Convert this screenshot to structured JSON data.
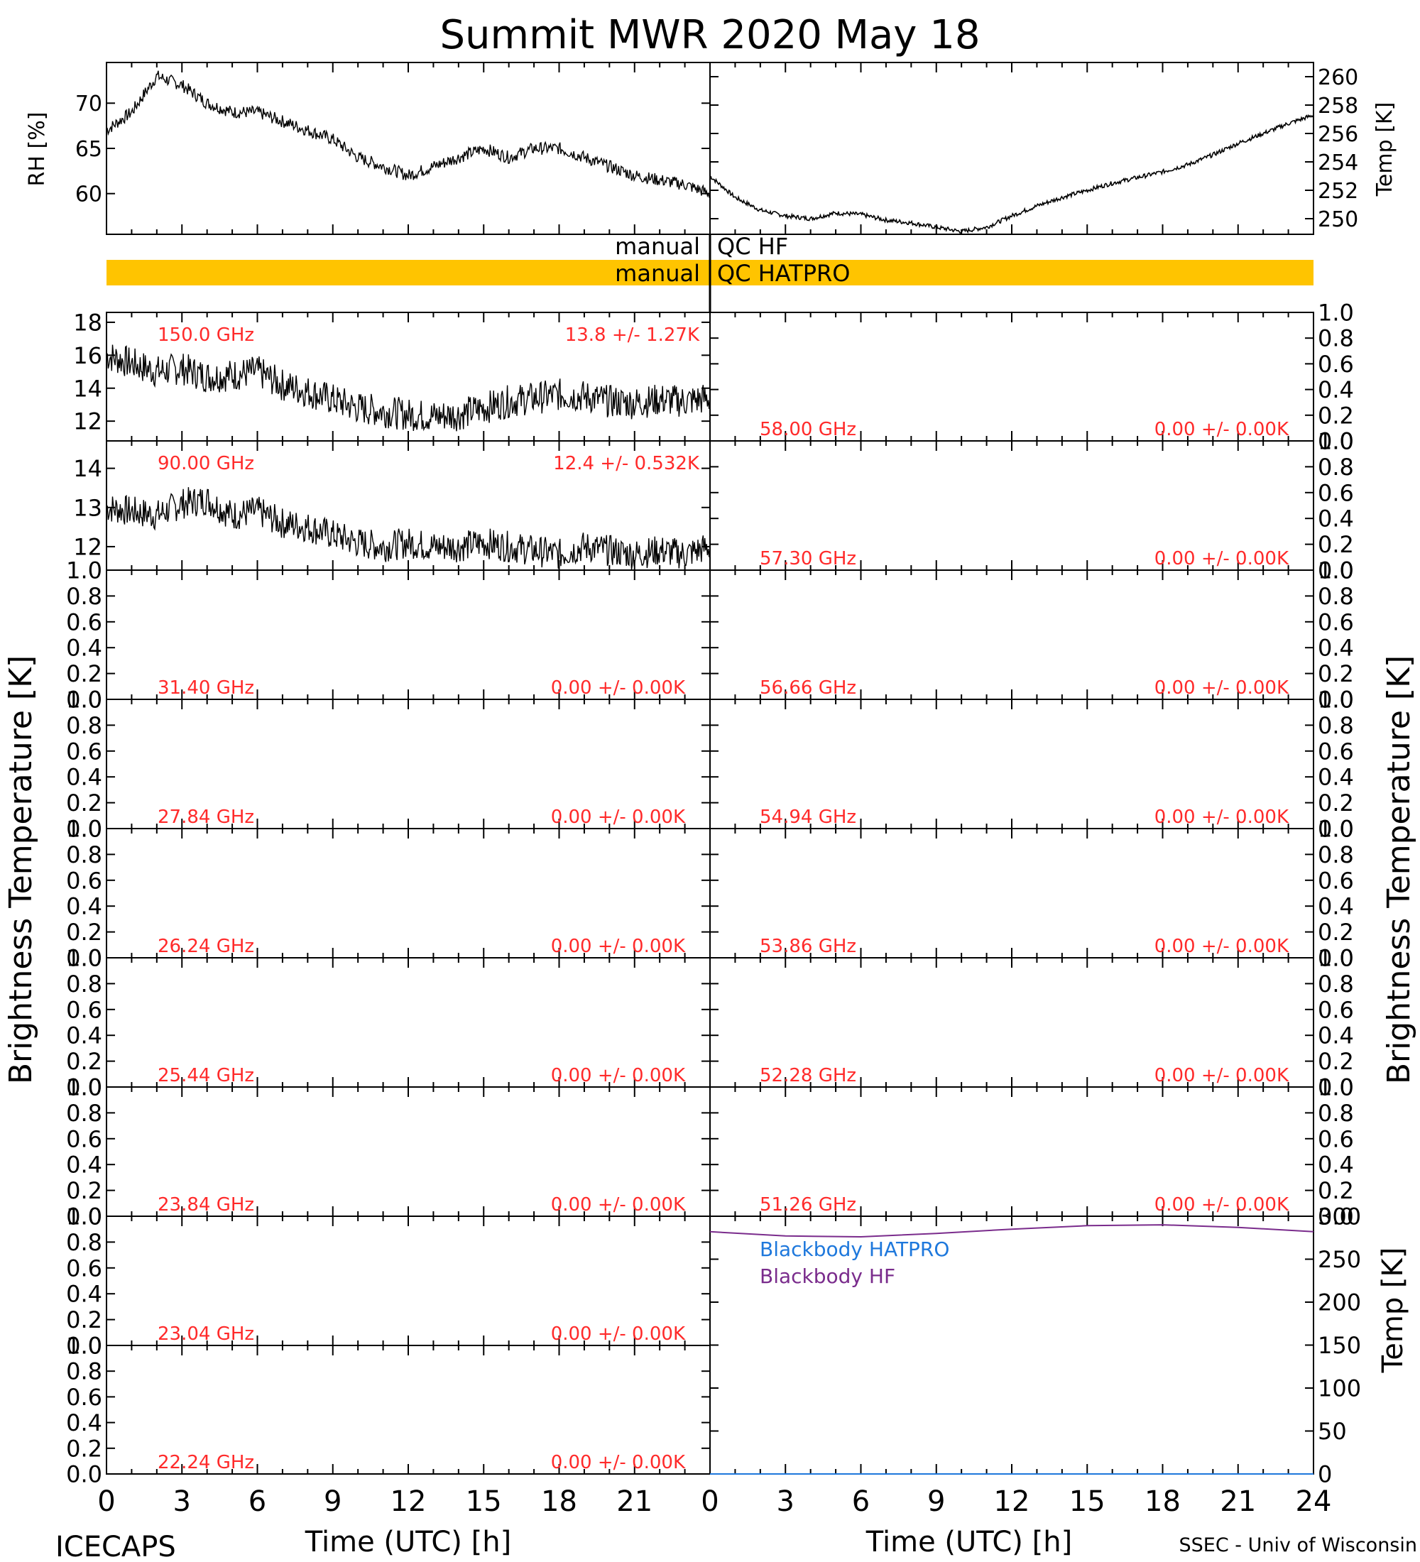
{
  "title": "Summit MWR 2020 May 18",
  "footer": {
    "left": "ICECAPS",
    "right": "SSEC - Univ of Wisconsin"
  },
  "colors": {
    "channel_label": "#ff2a2a",
    "qc_bar": "#ffc400",
    "bb_hatpro": "#1e78dc",
    "bb_hf": "#7a2c8c",
    "trace": "#000000"
  },
  "axes": {
    "time_label": "Time (UTC) [h]",
    "tb_label": "Brightness Temperature [K]",
    "rh_label": "RH [%]",
    "temp_label": "Temp [K]",
    "bb_temp_label": "Temp [K]",
    "time_ticks": [
      "0",
      "3",
      "6",
      "9",
      "12",
      "15",
      "18",
      "21",
      "24"
    ]
  },
  "qc": {
    "hf_label": "manual QC HF",
    "hatpro_label": "manual QC HATPRO"
  },
  "chart_data": [
    {
      "type": "line",
      "id": "rh",
      "ylabel": "RH [%]",
      "xlim": [
        0,
        12
      ],
      "ylim": [
        55.5,
        74.5
      ],
      "yticks": [
        "60",
        "65",
        "70"
      ],
      "x": [
        0,
        0.5,
        1,
        1.5,
        2,
        2.5,
        3,
        3.5,
        4,
        4.5,
        5,
        5.5,
        6,
        6.5,
        7,
        7.5,
        8,
        8.5,
        9,
        9.5,
        10,
        10.5,
        11,
        11.5,
        12
      ],
      "y": [
        67,
        69,
        73,
        72,
        70,
        69,
        69,
        68,
        67,
        66,
        64,
        63,
        62,
        63,
        64,
        65,
        64,
        65,
        65,
        64,
        63,
        62,
        61.5,
        61,
        60
      ]
    },
    {
      "type": "line",
      "id": "temp",
      "ylabel": "Temp [K]",
      "xlim": [
        0,
        12
      ],
      "ylim": [
        248.9,
        261
      ],
      "yticks": [
        "250",
        "252",
        "254",
        "256",
        "258",
        "260"
      ],
      "x": [
        0,
        0.5,
        1,
        1.5,
        2,
        2.5,
        3,
        3.5,
        4,
        4.5,
        5,
        5.5,
        6,
        6.5,
        7,
        7.5,
        8,
        8.5,
        9,
        9.5,
        10,
        10.5,
        11,
        11.5,
        12
      ],
      "y": [
        253,
        251.5,
        250.6,
        250.2,
        250,
        250.4,
        250.3,
        249.9,
        249.7,
        249.4,
        249.1,
        249.4,
        250.2,
        250.9,
        251.5,
        252,
        252.5,
        252.9,
        253.3,
        253.8,
        254.5,
        255.3,
        256,
        256.7,
        257.3
      ]
    },
    {
      "type": "line",
      "id": "tb_150",
      "channel": "150.0 GHz",
      "stats": "13.8 +/-  1.27K",
      "xlim": [
        0,
        12
      ],
      "ylim": [
        10.8,
        18.6
      ],
      "yticks": [
        "12",
        "14",
        "16",
        "18"
      ],
      "x": [
        0,
        0.5,
        1,
        1.5,
        2,
        2.5,
        3,
        3.5,
        4,
        4.5,
        5,
        5.5,
        6,
        6.5,
        7,
        7.5,
        8,
        8.5,
        9,
        9.5,
        10,
        10.5,
        11,
        11.5,
        12
      ],
      "y": [
        16,
        15.5,
        15,
        15.2,
        14.7,
        14.8,
        15,
        14.2,
        13.8,
        13.3,
        12.8,
        12.6,
        12.4,
        12.3,
        12.4,
        12.8,
        13.2,
        13.4,
        13.6,
        13.5,
        13.2,
        13.1,
        13.3,
        13.2,
        13.4
      ]
    },
    {
      "type": "line",
      "id": "tb_90",
      "channel": "90.00 GHz",
      "stats": "12.4 +/- 0.532K",
      "xlim": [
        0,
        12
      ],
      "ylim": [
        11.4,
        14.7
      ],
      "yticks": [
        "12",
        "13",
        "14"
      ],
      "x": [
        0,
        0.5,
        1,
        1.5,
        2,
        2.5,
        3,
        3.5,
        4,
        4.5,
        5,
        5.5,
        6,
        6.5,
        7,
        7.5,
        8,
        8.5,
        9,
        9.5,
        10,
        10.5,
        11,
        11.5,
        12
      ],
      "y": [
        13,
        12.9,
        12.8,
        13.1,
        13.2,
        12.8,
        12.9,
        12.6,
        12.5,
        12.3,
        12.1,
        12,
        12.1,
        12,
        12,
        12.1,
        12,
        11.9,
        11.8,
        12,
        11.9,
        11.8,
        11.9,
        11.8,
        12
      ]
    },
    {
      "type": "line",
      "id": "tb_empty",
      "ylim": [
        0,
        1
      ],
      "yticks": [
        "0.0",
        "0.2",
        "0.4",
        "0.6",
        "0.8",
        "1.0"
      ],
      "stats_blank": "0.00 +/- 0.00K",
      "left_channels": [
        "31.40 GHz",
        "27.84 GHz",
        "26.24 GHz",
        "25.44 GHz",
        "23.84 GHz",
        "23.04 GHz",
        "22.24 GHz"
      ],
      "right_channels": [
        "58.00 GHz",
        "57.30 GHz",
        "56.66 GHz",
        "54.94 GHz",
        "53.86 GHz",
        "52.28 GHz",
        "51.26 GHz"
      ]
    },
    {
      "type": "line",
      "id": "blackbody",
      "ylabel": "Temp [K]",
      "xlim": [
        0,
        24
      ],
      "ylim": [
        0,
        300
      ],
      "yticks": [
        "0",
        "50",
        "100",
        "150",
        "200",
        "250",
        "300"
      ],
      "series": [
        {
          "name": "Blackbody HATPRO",
          "x": [
            0,
            24
          ],
          "y": [
            0,
            0
          ]
        },
        {
          "name": "Blackbody HF",
          "x": [
            0,
            3,
            6,
            9,
            12,
            15,
            18,
            21,
            24
          ],
          "y": [
            282,
            277,
            276,
            280,
            285,
            289,
            290,
            287,
            282
          ]
        }
      ]
    }
  ]
}
